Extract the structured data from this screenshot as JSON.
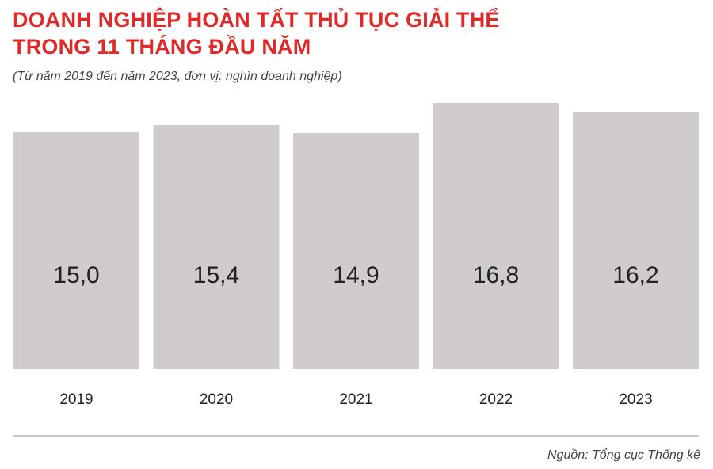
{
  "header": {
    "title_line1": "DOANH NGHIỆP HOÀN TẤT THỦ TỤC GIẢI THỂ",
    "title_line2": "TRONG 11 THÁNG ĐẦU NĂM",
    "subtitle": "(Từ năm 2019 đến năm 2023, đơn vị: nghìn doanh nghiệp)"
  },
  "footer": {
    "source": "Nguồn: Tổng cục Thống kê"
  },
  "colors": {
    "title": "#e02a2a",
    "bar": "#d0ccce",
    "text": "#222222",
    "divider": "#c9c6c8"
  },
  "chart_data": {
    "type": "bar",
    "categories": [
      "2019",
      "2020",
      "2021",
      "2022",
      "2023"
    ],
    "values": [
      15.0,
      15.4,
      14.9,
      16.8,
      16.2
    ],
    "value_labels": [
      "15,0",
      "15,4",
      "14,9",
      "16,8",
      "16,2"
    ],
    "xlabel": "",
    "ylabel": "",
    "grid": false,
    "legend": "none"
  }
}
